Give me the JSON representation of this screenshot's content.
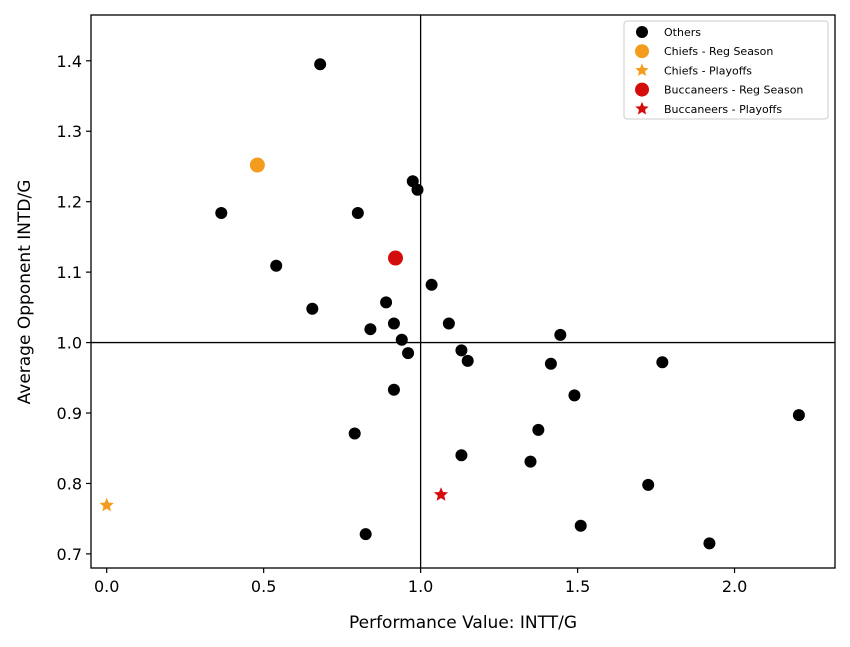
{
  "chart_data": {
    "type": "scatter",
    "xlabel": "Performance Value: INTT/G",
    "ylabel": "Average Opponent INTD/G",
    "xlim": [
      -0.05,
      2.32
    ],
    "ylim": [
      0.68,
      1.465
    ],
    "xticks": [
      0.0,
      0.5,
      1.0,
      1.5,
      2.0
    ],
    "xtick_labels": [
      "0.0",
      "0.5",
      "1.0",
      "1.5",
      "2.0"
    ],
    "yticks": [
      0.7,
      0.8,
      0.9,
      1.0,
      1.1,
      1.2,
      1.3,
      1.4
    ],
    "ytick_labels": [
      "0.7",
      "0.8",
      "0.9",
      "1.0",
      "1.1",
      "1.2",
      "1.3",
      "1.4"
    ],
    "reference_lines": {
      "x": 1.0,
      "y": 1.0
    },
    "grid": false,
    "legend_position": "top-right",
    "series": [
      {
        "name": "Others",
        "marker": "circle",
        "color": "#000000",
        "points": [
          [
            0.68,
            1.395
          ],
          [
            0.365,
            1.184
          ],
          [
            0.8,
            1.184
          ],
          [
            0.975,
            1.229
          ],
          [
            0.99,
            1.217
          ],
          [
            0.54,
            1.109
          ],
          [
            0.655,
            1.048
          ],
          [
            0.84,
            1.019
          ],
          [
            0.89,
            1.057
          ],
          [
            0.915,
            1.027
          ],
          [
            0.94,
            1.004
          ],
          [
            0.96,
            0.985
          ],
          [
            0.915,
            0.933
          ],
          [
            1.035,
            1.082
          ],
          [
            1.09,
            1.027
          ],
          [
            1.13,
            0.989
          ],
          [
            1.15,
            0.974
          ],
          [
            1.445,
            1.011
          ],
          [
            1.415,
            0.97
          ],
          [
            1.77,
            0.972
          ],
          [
            1.49,
            0.925
          ],
          [
            1.375,
            0.876
          ],
          [
            1.35,
            0.831
          ],
          [
            1.13,
            0.84
          ],
          [
            0.79,
            0.871
          ],
          [
            0.825,
            0.728
          ],
          [
            1.51,
            0.74
          ],
          [
            1.725,
            0.798
          ],
          [
            2.205,
            0.897
          ],
          [
            1.92,
            0.715
          ]
        ]
      },
      {
        "name": "Chiefs - Reg Season",
        "marker": "circle",
        "color": "#f39c1d",
        "points": [
          [
            0.48,
            1.252
          ]
        ]
      },
      {
        "name": "Chiefs - Playoffs",
        "marker": "star",
        "color": "#f39c1d",
        "points": [
          [
            0.0,
            0.769
          ]
        ]
      },
      {
        "name": "Buccaneers - Reg Season",
        "marker": "circle",
        "color": "#d40c0c",
        "points": [
          [
            0.92,
            1.12
          ]
        ]
      },
      {
        "name": "Buccaneers - Playoffs",
        "marker": "star",
        "color": "#d40c0c",
        "points": [
          [
            1.065,
            0.784
          ]
        ]
      }
    ]
  }
}
